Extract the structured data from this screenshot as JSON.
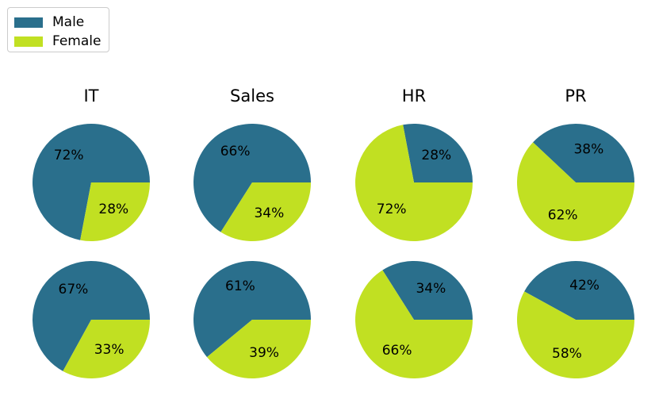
{
  "chart_data": {
    "type": "pie",
    "categories": [
      "IT",
      "Sales",
      "HR",
      "PR"
    ],
    "legend": {
      "placement": "top-left",
      "entries": [
        {
          "label": "Male",
          "color": "#2a6f8c"
        },
        {
          "label": "Female",
          "color": "#c1e022"
        }
      ]
    },
    "rows": [
      [
        {
          "category": "IT",
          "values": [
            72,
            28
          ],
          "labels": [
            "72%",
            "28%"
          ]
        },
        {
          "category": "Sales",
          "values": [
            66,
            34
          ],
          "labels": [
            "66%",
            "34%"
          ]
        },
        {
          "category": "HR",
          "values": [
            28,
            72
          ],
          "labels": [
            "28%",
            "72%"
          ]
        },
        {
          "category": "PR",
          "values": [
            38,
            62
          ],
          "labels": [
            "38%",
            "62%"
          ]
        }
      ],
      [
        {
          "category": "IT",
          "values": [
            67,
            33
          ],
          "labels": [
            "67%",
            "33%"
          ]
        },
        {
          "category": "Sales",
          "values": [
            61,
            39
          ],
          "labels": [
            "61%",
            "39%"
          ]
        },
        {
          "category": "HR",
          "values": [
            34,
            66
          ],
          "labels": [
            "34%",
            "66%"
          ]
        },
        {
          "category": "PR",
          "values": [
            42,
            58
          ],
          "labels": [
            "42%",
            "58%"
          ]
        }
      ]
    ]
  }
}
